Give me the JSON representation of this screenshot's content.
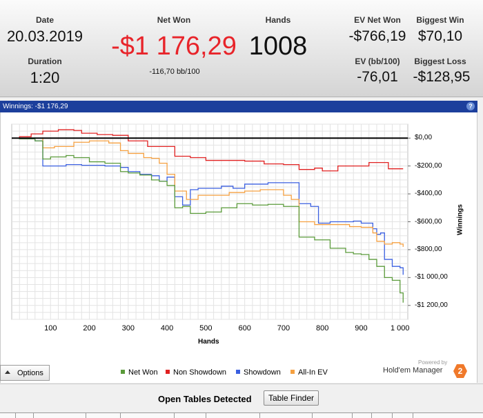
{
  "summary": {
    "date_label": "Date",
    "date_value": "20.03.2019",
    "duration_label": "Duration",
    "duration_value": "1:20",
    "net_won_label": "Net Won",
    "net_won_value": "-$1 176,29",
    "bb100": "-116,70 bb/100",
    "hands_label": "Hands",
    "hands_value": "1008",
    "ev_net_won_label": "EV Net Won",
    "ev_net_won_value": "-$766,19",
    "ev_bb100_label": "EV (bb/100)",
    "ev_bb100_value": "-76,01",
    "biggest_win_label": "Biggest Win",
    "biggest_win_value": "$70,10",
    "biggest_loss_label": "Biggest Loss",
    "biggest_loss_value": "-$128,95"
  },
  "winnings_bar": {
    "title": "Winnings: -$1 176,29",
    "help": "?"
  },
  "colors": {
    "net_won": "#5a9a3a",
    "non_showdown": "#e02020",
    "showdown": "#3a5fe0",
    "all_in_ev": "#f5a040",
    "net_won_text": "#e8242a",
    "title_bar": "#1c3f9c"
  },
  "chart_data": {
    "type": "line",
    "xlabel": "Hands",
    "ylabel": "Winnings",
    "xlim": [
      0,
      1020
    ],
    "ylim": [
      -1300,
      100
    ],
    "x_ticks": [
      "100",
      "200",
      "300",
      "400",
      "500",
      "600",
      "700",
      "800",
      "900",
      "1 000"
    ],
    "y_ticks": [
      "$0,00",
      "-$200,00",
      "-$400,00",
      "-$600,00",
      "-$800,00",
      "-$1 000,00",
      "-$1 200,00"
    ],
    "y_tick_values": [
      0,
      -200,
      -400,
      -600,
      -800,
      -1000,
      -1200
    ],
    "x_tick_values": [
      100,
      200,
      300,
      400,
      500,
      600,
      700,
      800,
      900,
      1000
    ],
    "series": [
      {
        "name": "Non Showdown",
        "points": [
          [
            0,
            0
          ],
          [
            20,
            10
          ],
          [
            50,
            30
          ],
          [
            80,
            50
          ],
          [
            120,
            60
          ],
          [
            160,
            55
          ],
          [
            180,
            35
          ],
          [
            220,
            25
          ],
          [
            260,
            20
          ],
          [
            300,
            -20
          ],
          [
            350,
            -60
          ],
          [
            390,
            -60
          ],
          [
            420,
            -130
          ],
          [
            460,
            -140
          ],
          [
            500,
            -160
          ],
          [
            550,
            -160
          ],
          [
            600,
            -165
          ],
          [
            650,
            -185
          ],
          [
            700,
            -190
          ],
          [
            740,
            -225
          ],
          [
            780,
            -215
          ],
          [
            800,
            -235
          ],
          [
            840,
            -200
          ],
          [
            880,
            -200
          ],
          [
            920,
            -175
          ],
          [
            950,
            -175
          ],
          [
            970,
            -220
          ],
          [
            1008,
            -220
          ]
        ]
      },
      {
        "name": "Showdown",
        "points": [
          [
            0,
            0
          ],
          [
            20,
            -5
          ],
          [
            60,
            -20
          ],
          [
            80,
            -200
          ],
          [
            120,
            -200
          ],
          [
            140,
            -190
          ],
          [
            180,
            -195
          ],
          [
            240,
            -200
          ],
          [
            280,
            -210
          ],
          [
            300,
            -240
          ],
          [
            330,
            -260
          ],
          [
            360,
            -270
          ],
          [
            380,
            -310
          ],
          [
            400,
            -280
          ],
          [
            420,
            -420
          ],
          [
            440,
            -480
          ],
          [
            460,
            -370
          ],
          [
            480,
            -360
          ],
          [
            540,
            -345
          ],
          [
            570,
            -360
          ],
          [
            600,
            -330
          ],
          [
            660,
            -320
          ],
          [
            700,
            -320
          ],
          [
            740,
            -470
          ],
          [
            770,
            -490
          ],
          [
            790,
            -610
          ],
          [
            820,
            -600
          ],
          [
            840,
            -600
          ],
          [
            860,
            -600
          ],
          [
            880,
            -595
          ],
          [
            900,
            -610
          ],
          [
            930,
            -650
          ],
          [
            940,
            -690
          ],
          [
            950,
            -680
          ],
          [
            960,
            -870
          ],
          [
            980,
            -920
          ],
          [
            1000,
            -930
          ],
          [
            1008,
            -980
          ]
        ]
      },
      {
        "name": "All-In EV",
        "points": [
          [
            0,
            0
          ],
          [
            20,
            0
          ],
          [
            60,
            0
          ],
          [
            80,
            -70
          ],
          [
            110,
            -60
          ],
          [
            140,
            -60
          ],
          [
            160,
            -30
          ],
          [
            200,
            -20
          ],
          [
            250,
            -35
          ],
          [
            280,
            -90
          ],
          [
            300,
            -110
          ],
          [
            340,
            -140
          ],
          [
            360,
            -145
          ],
          [
            380,
            -180
          ],
          [
            400,
            -260
          ],
          [
            420,
            -380
          ],
          [
            450,
            -440
          ],
          [
            480,
            -410
          ],
          [
            520,
            -410
          ],
          [
            560,
            -390
          ],
          [
            600,
            -380
          ],
          [
            640,
            -370
          ],
          [
            700,
            -410
          ],
          [
            720,
            -440
          ],
          [
            740,
            -600
          ],
          [
            780,
            -620
          ],
          [
            820,
            -620
          ],
          [
            840,
            -620
          ],
          [
            870,
            -635
          ],
          [
            900,
            -640
          ],
          [
            930,
            -680
          ],
          [
            940,
            -740
          ],
          [
            960,
            -760
          ],
          [
            980,
            -750
          ],
          [
            1000,
            -760
          ],
          [
            1008,
            -780
          ]
        ]
      },
      {
        "name": "Net Won",
        "points": [
          [
            0,
            0
          ],
          [
            20,
            -5
          ],
          [
            60,
            -20
          ],
          [
            80,
            -150
          ],
          [
            100,
            -135
          ],
          [
            140,
            -125
          ],
          [
            160,
            -140
          ],
          [
            200,
            -170
          ],
          [
            240,
            -180
          ],
          [
            280,
            -240
          ],
          [
            300,
            -250
          ],
          [
            330,
            -265
          ],
          [
            360,
            -300
          ],
          [
            380,
            -310
          ],
          [
            400,
            -340
          ],
          [
            420,
            -500
          ],
          [
            440,
            -490
          ],
          [
            460,
            -540
          ],
          [
            500,
            -530
          ],
          [
            540,
            -500
          ],
          [
            580,
            -470
          ],
          [
            620,
            -480
          ],
          [
            660,
            -475
          ],
          [
            700,
            -490
          ],
          [
            740,
            -710
          ],
          [
            780,
            -730
          ],
          [
            820,
            -790
          ],
          [
            860,
            -820
          ],
          [
            880,
            -830
          ],
          [
            900,
            -835
          ],
          [
            920,
            -870
          ],
          [
            940,
            -920
          ],
          [
            960,
            -1000
          ],
          [
            980,
            -1020
          ],
          [
            1000,
            -1110
          ],
          [
            1008,
            -1180
          ]
        ]
      }
    ],
    "zero_line": 0
  },
  "legend": [
    {
      "label": "Net Won",
      "color": "#5a9a3a"
    },
    {
      "label": "Non Showdown",
      "color": "#e02020"
    },
    {
      "label": "Showdown",
      "color": "#3a5fe0"
    },
    {
      "label": "All-In EV",
      "color": "#f5a040"
    }
  ],
  "controls": {
    "options_label": "Options",
    "powered_by": "Powered by",
    "brand": "Hold'em Manager",
    "brand_badge": "2"
  },
  "bottom": {
    "title": "Open Tables Detected",
    "table_finder": "Table Finder"
  }
}
